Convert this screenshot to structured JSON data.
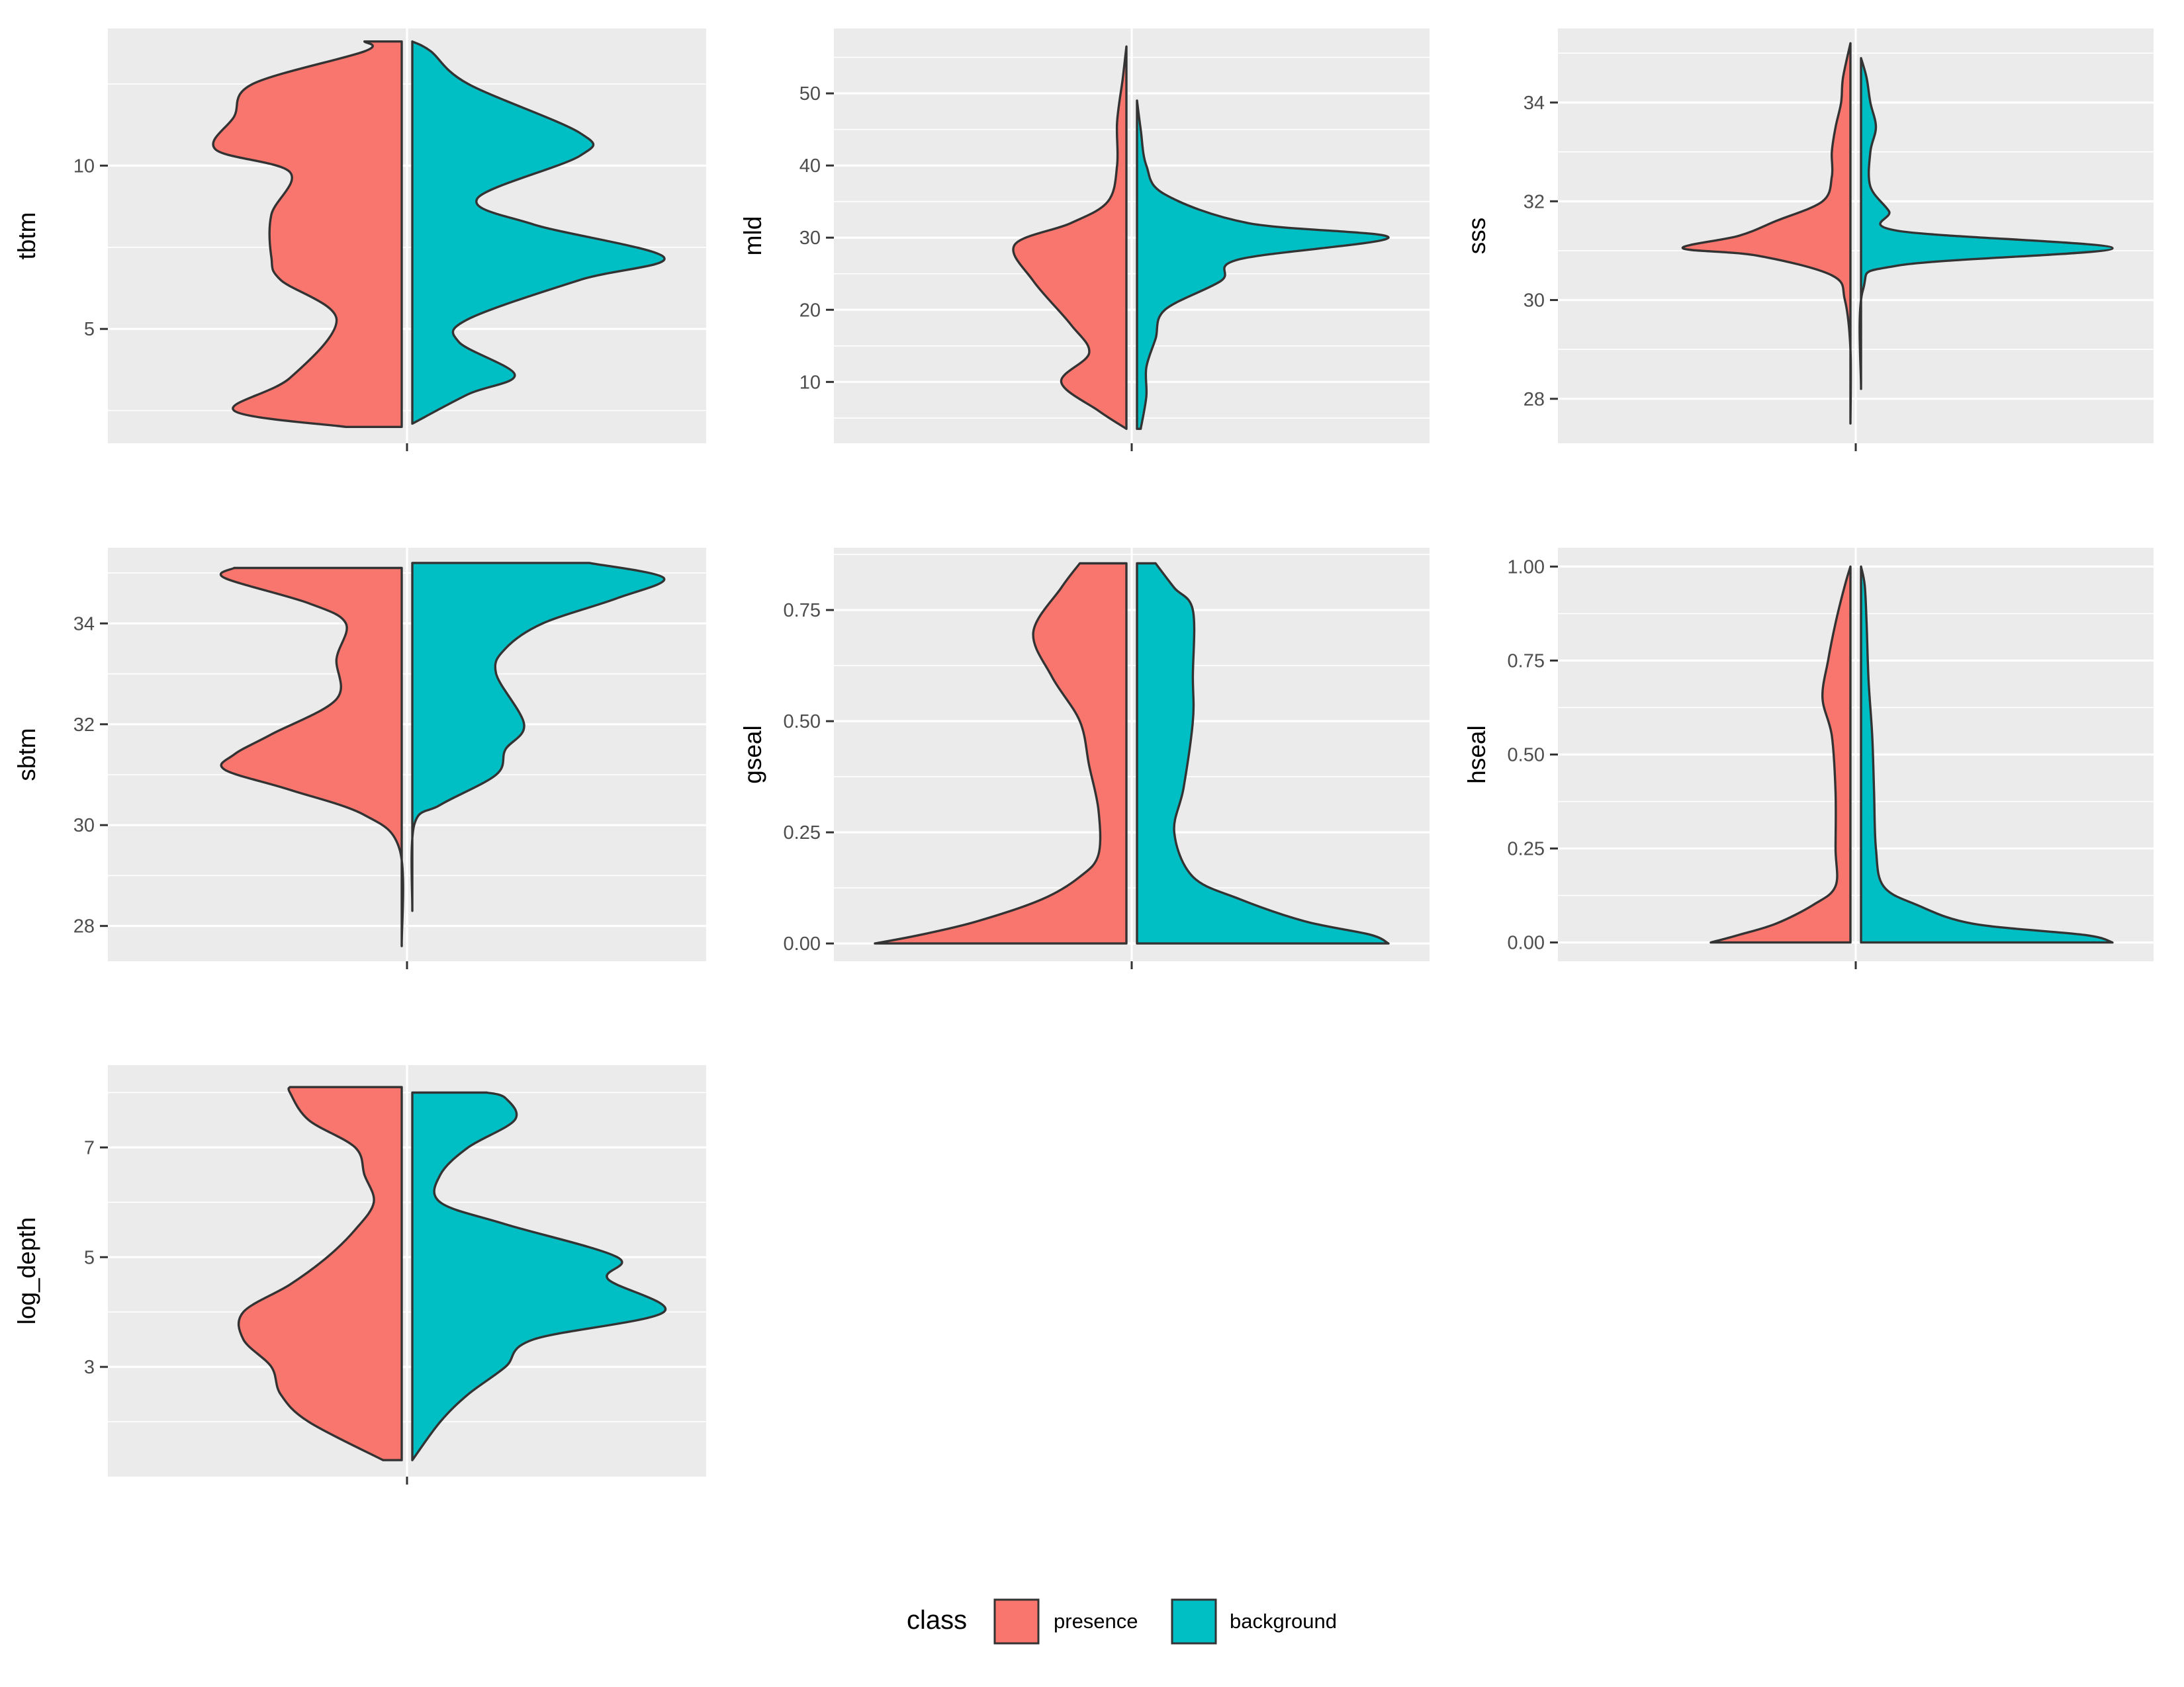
{
  "chart_data": {
    "type": "violin",
    "legend": {
      "title": "class",
      "position": "bottom",
      "entries": [
        {
          "label": "presence",
          "color": "#F8766D"
        },
        {
          "label": "background",
          "color": "#00BFC4"
        }
      ]
    },
    "panels": [
      {
        "id": "tbtm",
        "ylabel": "tbtm",
        "ylim": [
          1.5,
          14.2
        ],
        "ticks": [
          {
            "v": 5,
            "t": "5"
          },
          {
            "v": 10,
            "t": "10"
          }
        ],
        "minor": [
          2.5,
          7.5,
          12.5
        ],
        "presence": {
          "min": 2.0,
          "max": 13.8,
          "profile": [
            [
              2.0,
              0.3
            ],
            [
              2.5,
              0.9
            ],
            [
              3.5,
              0.6
            ],
            [
              5.3,
              0.35
            ],
            [
              6.5,
              0.65
            ],
            [
              7.2,
              0.7
            ],
            [
              8.5,
              0.7
            ],
            [
              9.8,
              0.6
            ],
            [
              10.5,
              1.0
            ],
            [
              11.5,
              0.9
            ],
            [
              12.5,
              0.8
            ],
            [
              13.5,
              0.2
            ],
            [
              13.8,
              0.2
            ]
          ]
        },
        "background": {
          "min": 2.1,
          "max": 13.8,
          "profile": [
            [
              2.1,
              0.0
            ],
            [
              3.0,
              0.3
            ],
            [
              3.6,
              0.55
            ],
            [
              4.6,
              0.25
            ],
            [
              5.3,
              0.3
            ],
            [
              6.5,
              0.9
            ],
            [
              7.2,
              1.35
            ],
            [
              8.2,
              0.65
            ],
            [
              9.0,
              0.35
            ],
            [
              10.3,
              0.9
            ],
            [
              11.0,
              0.9
            ],
            [
              12.5,
              0.3
            ],
            [
              13.5,
              0.1
            ],
            [
              13.8,
              0.0
            ]
          ]
        }
      },
      {
        "id": "mld",
        "ylabel": "mld",
        "ylim": [
          1.5,
          59
        ],
        "ticks": [
          {
            "v": 10,
            "t": "10"
          },
          {
            "v": 20,
            "t": "20"
          },
          {
            "v": 30,
            "t": "30"
          },
          {
            "v": 40,
            "t": "40"
          },
          {
            "v": 50,
            "t": "50"
          }
        ],
        "minor": [
          5,
          15,
          25,
          35,
          45,
          55
        ],
        "presence": {
          "min": 3.5,
          "max": 56.5,
          "profile": [
            [
              3.5,
              0.0
            ],
            [
              6.0,
              0.15
            ],
            [
              10.0,
              0.35
            ],
            [
              14.0,
              0.2
            ],
            [
              18.0,
              0.3
            ],
            [
              24.0,
              0.5
            ],
            [
              29.0,
              0.6
            ],
            [
              32.0,
              0.3
            ],
            [
              35.0,
              0.1
            ],
            [
              40.0,
              0.05
            ],
            [
              46.0,
              0.05
            ],
            [
              52.0,
              0.02
            ],
            [
              56.5,
              0.0
            ]
          ]
        },
        "background": {
          "min": 3.5,
          "max": 49,
          "profile": [
            [
              3.5,
              0.02
            ],
            [
              8.0,
              0.05
            ],
            [
              12.0,
              0.05
            ],
            [
              16.0,
              0.1
            ],
            [
              20.0,
              0.15
            ],
            [
              24.0,
              0.45
            ],
            [
              27.0,
              0.55
            ],
            [
              30.0,
              1.35
            ],
            [
              32.0,
              0.6
            ],
            [
              36.0,
              0.15
            ],
            [
              40.0,
              0.05
            ],
            [
              45.0,
              0.02
            ],
            [
              49.0,
              0.0
            ]
          ]
        }
      },
      {
        "id": "sss",
        "ylabel": "sss",
        "ylim": [
          27.1,
          35.5
        ],
        "ticks": [
          {
            "v": 28,
            "t": "28"
          },
          {
            "v": 30,
            "t": "30"
          },
          {
            "v": 32,
            "t": "32"
          },
          {
            "v": 34,
            "t": "34"
          }
        ],
        "minor": [
          29,
          31,
          33,
          35
        ],
        "presence": {
          "min": 27.5,
          "max": 35.2,
          "profile": [
            [
              27.5,
              0.0
            ],
            [
              29.0,
              0.0
            ],
            [
              30.0,
              0.03
            ],
            [
              30.5,
              0.1
            ],
            [
              30.9,
              0.5
            ],
            [
              31.05,
              0.9
            ],
            [
              31.3,
              0.6
            ],
            [
              31.6,
              0.4
            ],
            [
              32.0,
              0.15
            ],
            [
              32.5,
              0.1
            ],
            [
              33.0,
              0.1
            ],
            [
              33.5,
              0.08
            ],
            [
              34.0,
              0.05
            ],
            [
              34.5,
              0.04
            ],
            [
              35.2,
              0.0
            ]
          ]
        },
        "background": {
          "min": 28.2,
          "max": 34.9,
          "profile": [
            [
              28.2,
              0.0
            ],
            [
              30.2,
              0.01
            ],
            [
              30.7,
              0.2
            ],
            [
              31.05,
              1.35
            ],
            [
              31.4,
              0.2
            ],
            [
              31.8,
              0.15
            ],
            [
              32.3,
              0.05
            ],
            [
              33.0,
              0.05
            ],
            [
              33.5,
              0.08
            ],
            [
              34.0,
              0.05
            ],
            [
              34.5,
              0.03
            ],
            [
              34.9,
              0.0
            ]
          ]
        }
      },
      {
        "id": "sbtm",
        "ylabel": "sbtm",
        "ylim": [
          27.3,
          35.5
        ],
        "ticks": [
          {
            "v": 28,
            "t": "28"
          },
          {
            "v": 30,
            "t": "30"
          },
          {
            "v": 32,
            "t": "32"
          },
          {
            "v": 34,
            "t": "34"
          }
        ],
        "minor": [
          29,
          31,
          33,
          35
        ],
        "presence": {
          "min": 27.6,
          "max": 35.1,
          "profile": [
            [
              27.6,
              0.0
            ],
            [
              29.5,
              0.01
            ],
            [
              30.2,
              0.2
            ],
            [
              30.7,
              0.6
            ],
            [
              31.1,
              0.95
            ],
            [
              31.4,
              0.9
            ],
            [
              31.8,
              0.7
            ],
            [
              32.5,
              0.35
            ],
            [
              33.3,
              0.35
            ],
            [
              34.0,
              0.3
            ],
            [
              34.4,
              0.5
            ],
            [
              34.9,
              0.95
            ],
            [
              35.1,
              0.9
            ]
          ]
        },
        "background": {
          "min": 28.3,
          "max": 35.2,
          "profile": [
            [
              28.3,
              0.0
            ],
            [
              30.0,
              0.01
            ],
            [
              30.4,
              0.15
            ],
            [
              31.0,
              0.45
            ],
            [
              31.5,
              0.5
            ],
            [
              32.0,
              0.6
            ],
            [
              33.0,
              0.45
            ],
            [
              33.5,
              0.5
            ],
            [
              34.0,
              0.7
            ],
            [
              34.5,
              1.1
            ],
            [
              34.9,
              1.35
            ],
            [
              35.2,
              0.95
            ]
          ]
        }
      },
      {
        "id": "gseal",
        "ylabel": "gseal",
        "ylim": [
          -0.04,
          0.89
        ],
        "ticks": [
          {
            "v": 0,
            "t": "0.00"
          },
          {
            "v": 0.25,
            "t": "0.25"
          },
          {
            "v": 0.5,
            "t": "0.50"
          },
          {
            "v": 0.75,
            "t": "0.75"
          }
        ],
        "minor": [
          0.125,
          0.375,
          0.625,
          0.875
        ],
        "presence": {
          "min": 0.0,
          "max": 0.855,
          "profile": [
            [
              0.0,
              1.35
            ],
            [
              0.02,
              1.1
            ],
            [
              0.05,
              0.8
            ],
            [
              0.1,
              0.45
            ],
            [
              0.15,
              0.25
            ],
            [
              0.2,
              0.15
            ],
            [
              0.3,
              0.15
            ],
            [
              0.4,
              0.2
            ],
            [
              0.5,
              0.25
            ],
            [
              0.6,
              0.4
            ],
            [
              0.7,
              0.5
            ],
            [
              0.8,
              0.35
            ],
            [
              0.855,
              0.25
            ]
          ]
        },
        "background": {
          "min": 0.0,
          "max": 0.855,
          "profile": [
            [
              0.0,
              1.35
            ],
            [
              0.02,
              1.25
            ],
            [
              0.05,
              0.9
            ],
            [
              0.1,
              0.55
            ],
            [
              0.15,
              0.3
            ],
            [
              0.25,
              0.2
            ],
            [
              0.35,
              0.25
            ],
            [
              0.5,
              0.3
            ],
            [
              0.6,
              0.3
            ],
            [
              0.75,
              0.3
            ],
            [
              0.8,
              0.2
            ],
            [
              0.855,
              0.1
            ]
          ]
        }
      },
      {
        "id": "hseal",
        "ylabel": "hseal",
        "ylim": [
          -0.05,
          1.05
        ],
        "ticks": [
          {
            "v": 0,
            "t": "0.00"
          },
          {
            "v": 0.25,
            "t": "0.25"
          },
          {
            "v": 0.5,
            "t": "0.50"
          },
          {
            "v": 0.75,
            "t": "0.75"
          },
          {
            "v": 1.0,
            "t": "1.00"
          }
        ],
        "minor": [
          0.125,
          0.375,
          0.625,
          0.875
        ],
        "presence": {
          "min": 0.0,
          "max": 1.0,
          "profile": [
            [
              0.0,
              0.75
            ],
            [
              0.02,
              0.6
            ],
            [
              0.05,
              0.4
            ],
            [
              0.1,
              0.2
            ],
            [
              0.15,
              0.08
            ],
            [
              0.25,
              0.08
            ],
            [
              0.4,
              0.08
            ],
            [
              0.55,
              0.1
            ],
            [
              0.65,
              0.15
            ],
            [
              0.75,
              0.12
            ],
            [
              0.85,
              0.08
            ],
            [
              0.95,
              0.03
            ],
            [
              1.0,
              0.0
            ]
          ]
        },
        "background": {
          "min": 0.0,
          "max": 1.0,
          "profile": [
            [
              0.0,
              1.35
            ],
            [
              0.02,
              1.2
            ],
            [
              0.05,
              0.6
            ],
            [
              0.1,
              0.3
            ],
            [
              0.15,
              0.12
            ],
            [
              0.25,
              0.08
            ],
            [
              0.4,
              0.07
            ],
            [
              0.55,
              0.06
            ],
            [
              0.7,
              0.04
            ],
            [
              0.85,
              0.03
            ],
            [
              0.95,
              0.02
            ],
            [
              1.0,
              0.0
            ]
          ]
        }
      },
      {
        "id": "log_depth",
        "ylabel": "log_depth",
        "ylim": [
          1.0,
          8.5
        ],
        "ticks": [
          {
            "v": 3,
            "t": "3"
          },
          {
            "v": 5,
            "t": "5"
          },
          {
            "v": 7,
            "t": "7"
          }
        ],
        "minor": [
          2,
          4,
          6,
          8
        ],
        "presence": {
          "min": 1.3,
          "max": 8.1,
          "profile": [
            [
              1.3,
              0.1
            ],
            [
              2.0,
              0.5
            ],
            [
              2.5,
              0.65
            ],
            [
              3.0,
              0.7
            ],
            [
              3.5,
              0.85
            ],
            [
              4.0,
              0.85
            ],
            [
              4.5,
              0.6
            ],
            [
              5.0,
              0.4
            ],
            [
              5.5,
              0.25
            ],
            [
              6.0,
              0.15
            ],
            [
              6.5,
              0.2
            ],
            [
              7.0,
              0.25
            ],
            [
              7.5,
              0.5
            ],
            [
              8.0,
              0.6
            ],
            [
              8.1,
              0.6
            ]
          ]
        },
        "background": {
          "min": 1.3,
          "max": 8.0,
          "profile": [
            [
              1.3,
              0.0
            ],
            [
              2.0,
              0.15
            ],
            [
              2.5,
              0.3
            ],
            [
              3.0,
              0.5
            ],
            [
              3.5,
              0.65
            ],
            [
              4.0,
              1.35
            ],
            [
              4.6,
              1.05
            ],
            [
              5.0,
              1.1
            ],
            [
              5.6,
              0.5
            ],
            [
              6.0,
              0.15
            ],
            [
              6.5,
              0.15
            ],
            [
              7.0,
              0.3
            ],
            [
              7.5,
              0.55
            ],
            [
              7.9,
              0.5
            ],
            [
              8.0,
              0.4
            ]
          ]
        }
      }
    ]
  }
}
